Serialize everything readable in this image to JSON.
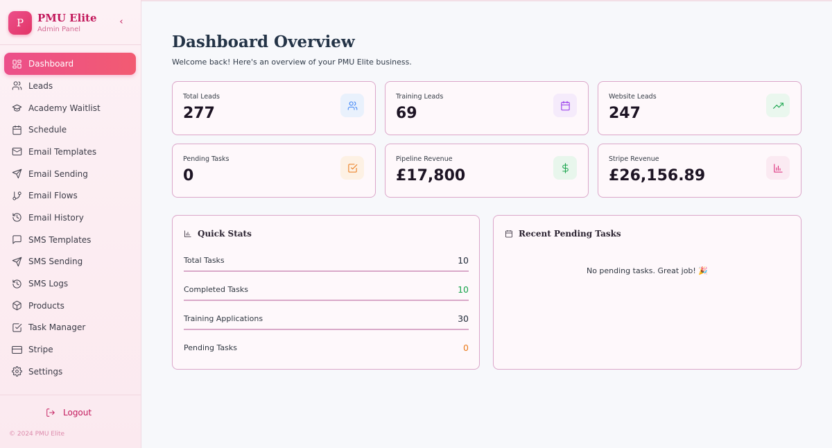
{
  "brand": {
    "initial": "P",
    "name": "PMU Elite",
    "subtitle": "Admin Panel",
    "collapse_icon": "chevron-left-icon"
  },
  "sidebar": {
    "items": [
      {
        "label": "Dashboard",
        "icon": "dashboard-grid-icon",
        "active": true
      },
      {
        "label": "Leads",
        "icon": "users-icon"
      },
      {
        "label": "Academy Waitlist",
        "icon": "graduation-cap-icon"
      },
      {
        "label": "Schedule",
        "icon": "calendar-icon"
      },
      {
        "label": "Email Templates",
        "icon": "mail-icon"
      },
      {
        "label": "Email Sending",
        "icon": "send-icon"
      },
      {
        "label": "Email Flows",
        "icon": "git-branch-icon"
      },
      {
        "label": "Email History",
        "icon": "history-icon"
      },
      {
        "label": "SMS Templates",
        "icon": "message-square-icon"
      },
      {
        "label": "SMS Sending",
        "icon": "send-icon"
      },
      {
        "label": "SMS Logs",
        "icon": "history-icon"
      },
      {
        "label": "Products",
        "icon": "package-icon"
      },
      {
        "label": "Task Manager",
        "icon": "check-square-icon"
      },
      {
        "label": "Stripe",
        "icon": "credit-card-icon"
      },
      {
        "label": "Settings",
        "icon": "gear-icon"
      }
    ],
    "logout_label": "Logout",
    "copyright": "© 2024 PMU Elite"
  },
  "header": {
    "title": "Dashboard Overview",
    "subtitle": "Welcome back! Here's an overview of your PMU Elite business."
  },
  "stats": [
    {
      "label": "Total Leads",
      "value": "277",
      "icon": "users-icon",
      "color": "#3b82f6",
      "bg": "#e9f1fc"
    },
    {
      "label": "Training Leads",
      "value": "69",
      "icon": "calendar-icon",
      "color": "#9333ea",
      "bg": "#f5ebfb"
    },
    {
      "label": "Website Leads",
      "value": "247",
      "icon": "trending-up-icon",
      "color": "#16a34a",
      "bg": "#eaf7ee"
    },
    {
      "label": "Pending Tasks",
      "value": "0",
      "icon": "check-square-icon",
      "color": "#ea7a1a",
      "bg": "#fdf1e4"
    },
    {
      "label": "Pipeline Revenue",
      "value": "£17,800",
      "icon": "dollar-icon",
      "color": "#16a34a",
      "bg": "#e8f6ec"
    },
    {
      "label": "Stripe Revenue",
      "value": "£26,156.89",
      "icon": "bar-chart-icon",
      "color": "#db2777",
      "bg": "#fbeaf2"
    }
  ],
  "quick_stats": {
    "title": "Quick Stats",
    "rows": [
      {
        "label": "Total Tasks",
        "value": "10",
        "color": "#1f2937"
      },
      {
        "label": "Completed Tasks",
        "value": "10",
        "color": "#16a34a"
      },
      {
        "label": "Training Applications",
        "value": "30",
        "color": "#1f2937"
      },
      {
        "label": "Pending Tasks",
        "value": "0",
        "color": "#ea7a1a"
      }
    ]
  },
  "pending_tasks": {
    "title": "Recent Pending Tasks",
    "empty_message": "No pending tasks. Great job! 🎉"
  }
}
